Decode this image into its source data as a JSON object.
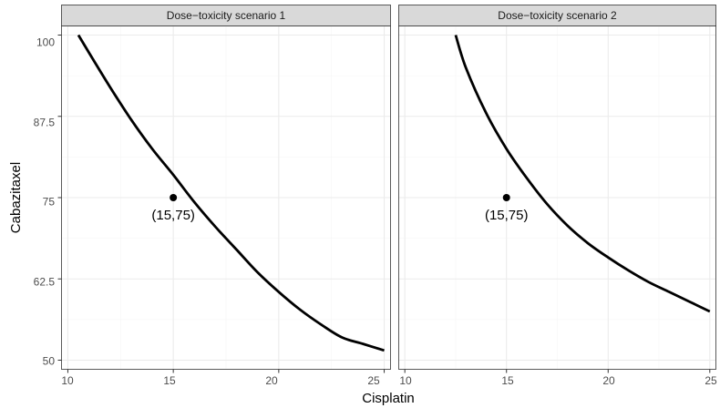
{
  "chart_data": {
    "type": "line",
    "xlabel": "Cisplatin",
    "ylabel": "Cabazitaxel",
    "xlim": [
      9.7,
      25.3
    ],
    "ylim": [
      48.6,
      101.4
    ],
    "x_ticks": [
      10,
      15,
      20,
      25
    ],
    "y_ticks": [
      50,
      62.5,
      75,
      87.5,
      100
    ],
    "x_tick_labels": [
      "10",
      "15",
      "20",
      "25"
    ],
    "y_tick_labels": [
      "50",
      "62.5",
      "75",
      "87.5",
      "100"
    ],
    "grid": true,
    "colors": {
      "line": "#000000",
      "grid_major": "#ebebeb",
      "grid_minor": "#f5f5f5",
      "strip": "#d9d9d9",
      "border": "#333333"
    },
    "panels": [
      {
        "title": "Dose−toxicity scenario 1",
        "series": [
          {
            "x": [
              10.5,
              11,
              12,
              13,
              14,
              15,
              16,
              17,
              18,
              19,
              20,
              21,
              22,
              23,
              24,
              25
            ],
            "y": [
              100,
              97.3,
              92,
              87,
              82.5,
              78.5,
              74.3,
              70.5,
              67,
              63.5,
              60.5,
              57.8,
              55.5,
              53.5,
              52.5,
              51.5
            ]
          }
        ],
        "point": {
          "x": 15,
          "y": 75,
          "label": "(15,75)"
        }
      },
      {
        "title": "Dose−toxicity scenario 2",
        "series": [
          {
            "x": [
              12.5,
              13,
              14,
              15,
              16,
              17,
              18,
              19,
              20,
              21,
              22,
              23,
              24,
              25
            ],
            "y": [
              100,
              95,
              88,
              82.5,
              78,
              74,
              70.7,
              68,
              65.8,
              63.8,
              62,
              60.5,
              59,
              57.5
            ]
          }
        ],
        "point": {
          "x": 15,
          "y": 75,
          "label": "(15,75)"
        }
      }
    ]
  }
}
